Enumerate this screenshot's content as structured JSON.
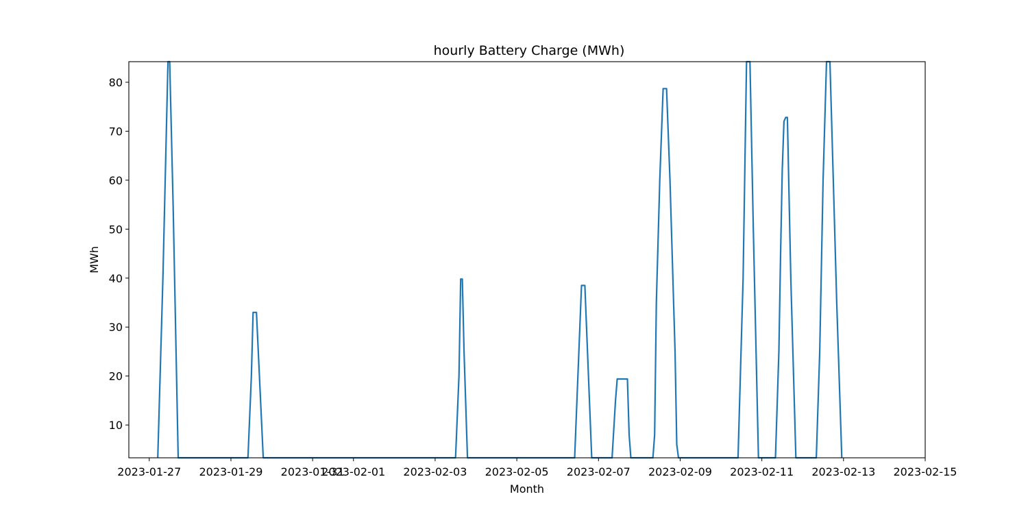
{
  "chart_data": {
    "type": "line",
    "title": "hourly Battery Charge (MWh)",
    "xlabel": "Month",
    "ylabel": "MWh",
    "grid": false,
    "line_color": "#1f77b4",
    "xlim": [
      "2023-01-26T12:00",
      "2023-02-15T00:00"
    ],
    "ylim": [
      3.3,
      84.2
    ],
    "xticks": [
      {
        "date": "2023-01-27T00:00",
        "label": "2023-01-27"
      },
      {
        "date": "2023-01-29T00:00",
        "label": "2023-01-29"
      },
      {
        "date": "2023-01-31T00:00",
        "label": "2023-01-31"
      },
      {
        "date": "2023-02-01T00:00",
        "label": "2023-02-01"
      },
      {
        "date": "2023-02-03T00:00",
        "label": "2023-02-03"
      },
      {
        "date": "2023-02-05T00:00",
        "label": "2023-02-05"
      },
      {
        "date": "2023-02-07T00:00",
        "label": "2023-02-07"
      },
      {
        "date": "2023-02-09T00:00",
        "label": "2023-02-09"
      },
      {
        "date": "2023-02-11T00:00",
        "label": "2023-02-11"
      },
      {
        "date": "2023-02-13T00:00",
        "label": "2023-02-13"
      },
      {
        "date": "2023-02-15T00:00",
        "label": "2023-02-15"
      }
    ],
    "yticks": [
      10,
      20,
      30,
      40,
      50,
      60,
      70,
      80
    ],
    "series": [
      {
        "points": [
          [
            "2023-01-27T05:00",
            3.3
          ],
          [
            "2023-01-27T08:00",
            40
          ],
          [
            "2023-01-27T11:00",
            84.2
          ],
          [
            "2023-01-27T12:00",
            84.2
          ],
          [
            "2023-01-27T14:00",
            55
          ],
          [
            "2023-01-27T17:00",
            3.3
          ],
          [
            "2023-01-29T10:00",
            3.3
          ],
          [
            "2023-01-29T12:00",
            20
          ],
          [
            "2023-01-29T13:00",
            33
          ],
          [
            "2023-01-29T15:00",
            33
          ],
          [
            "2023-01-29T19:00",
            3.3
          ],
          [
            "2023-02-03T12:00",
            3.3
          ],
          [
            "2023-02-03T14:00",
            20
          ],
          [
            "2023-02-03T15:00",
            39.8
          ],
          [
            "2023-02-03T16:00",
            39.8
          ],
          [
            "2023-02-03T17:00",
            25
          ],
          [
            "2023-02-03T19:00",
            3.3
          ],
          [
            "2023-02-06T10:00",
            3.3
          ],
          [
            "2023-02-06T14:00",
            38.5
          ],
          [
            "2023-02-06T16:00",
            38.5
          ],
          [
            "2023-02-06T20:00",
            3.3
          ],
          [
            "2023-02-07T08:00",
            3.3
          ],
          [
            "2023-02-07T10:00",
            15
          ],
          [
            "2023-02-07T11:00",
            19.4
          ],
          [
            "2023-02-07T17:00",
            19.4
          ],
          [
            "2023-02-07T18:00",
            8
          ],
          [
            "2023-02-07T19:00",
            3.3
          ],
          [
            "2023-02-08T08:00",
            3.3
          ],
          [
            "2023-02-08T09:00",
            8
          ],
          [
            "2023-02-08T10:00",
            35
          ],
          [
            "2023-02-08T12:00",
            60
          ],
          [
            "2023-02-08T14:00",
            78.7
          ],
          [
            "2023-02-08T16:00",
            78.7
          ],
          [
            "2023-02-08T18:00",
            60
          ],
          [
            "2023-02-08T21:00",
            25
          ],
          [
            "2023-02-08T22:00",
            6
          ],
          [
            "2023-02-08T23:00",
            3.3
          ],
          [
            "2023-02-10T10:00",
            3.3
          ],
          [
            "2023-02-10T13:00",
            40
          ],
          [
            "2023-02-10T15:00",
            84.2
          ],
          [
            "2023-02-10T17:00",
            84.2
          ],
          [
            "2023-02-10T19:00",
            50
          ],
          [
            "2023-02-10T22:00",
            3.3
          ],
          [
            "2023-02-11T08:00",
            3.3
          ],
          [
            "2023-02-11T10:00",
            25
          ],
          [
            "2023-02-11T11:00",
            45
          ],
          [
            "2023-02-11T12:00",
            62
          ],
          [
            "2023-02-11T13:00",
            72
          ],
          [
            "2023-02-11T14:00",
            72.8
          ],
          [
            "2023-02-11T15:00",
            72.8
          ],
          [
            "2023-02-11T17:00",
            40
          ],
          [
            "2023-02-11T20:00",
            3.3
          ],
          [
            "2023-02-12T08:00",
            3.3
          ],
          [
            "2023-02-12T10:00",
            25
          ],
          [
            "2023-02-12T12:00",
            60
          ],
          [
            "2023-02-12T14:00",
            84.2
          ],
          [
            "2023-02-12T16:00",
            84.2
          ],
          [
            "2023-02-12T18:00",
            60
          ],
          [
            "2023-02-12T20:00",
            35
          ],
          [
            "2023-02-12T23:00",
            3.3
          ]
        ]
      }
    ]
  }
}
